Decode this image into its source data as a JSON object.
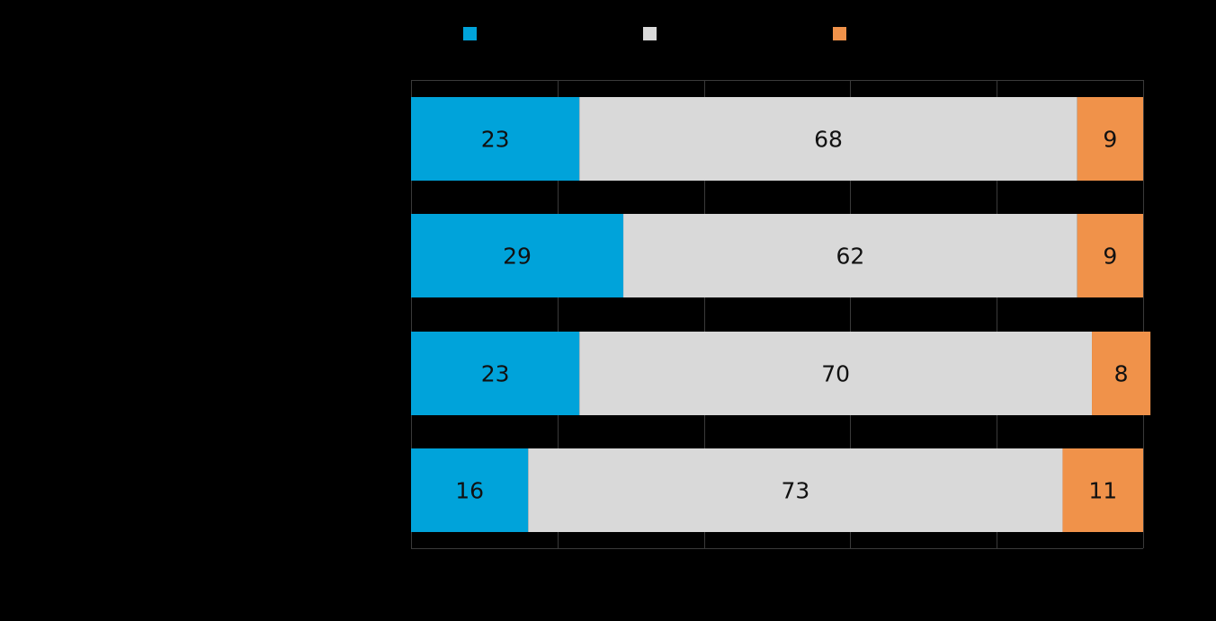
{
  "chart_data": {
    "type": "bar",
    "orientation": "horizontal",
    "stacked": true,
    "title": "",
    "xlabel": "",
    "ylabel": "",
    "xlim": [
      0,
      100
    ],
    "grid": true,
    "legend": "top",
    "categories": [
      "",
      "",
      "",
      ""
    ],
    "series": [
      {
        "color": "#00a3da",
        "values": [
          23,
          29,
          23,
          16
        ]
      },
      {
        "color": "#d9d9d9",
        "values": [
          68,
          62,
          70,
          73
        ]
      },
      {
        "color": "#f0924a",
        "values": [
          9,
          9,
          8,
          11
        ]
      }
    ]
  }
}
